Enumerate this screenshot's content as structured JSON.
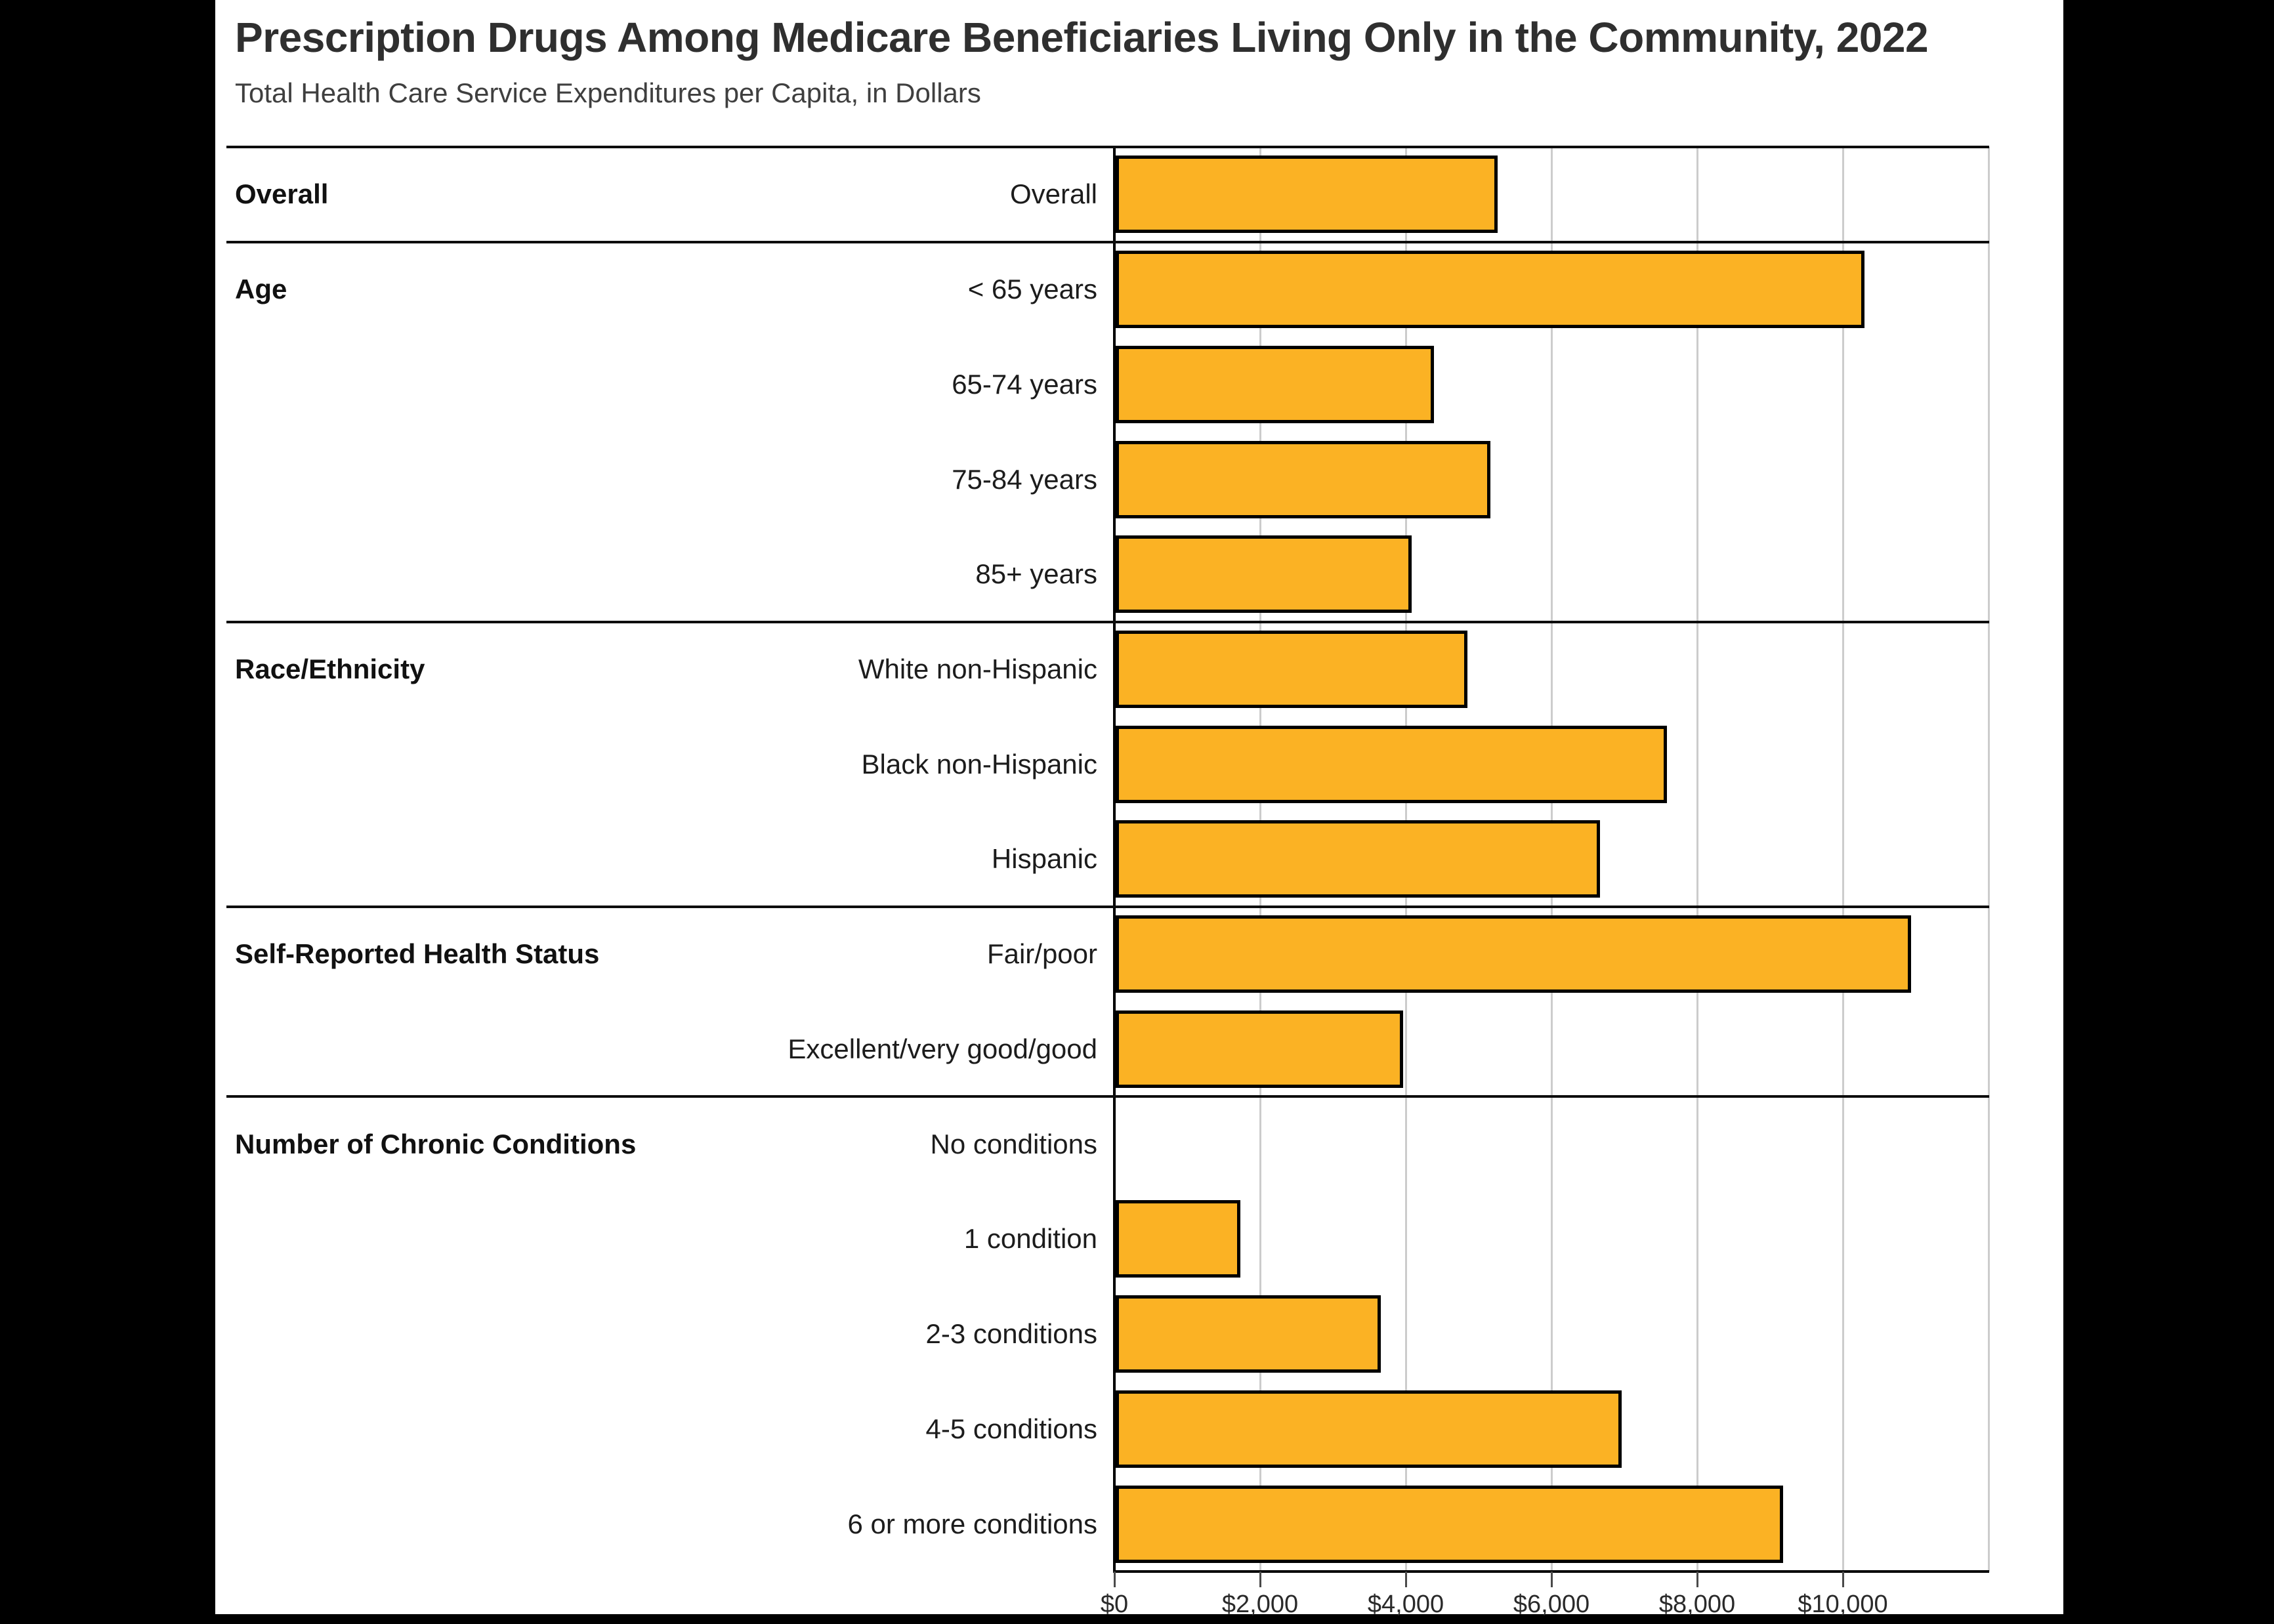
{
  "title": "Prescription Drugs Among Medicare Beneficiaries Living Only in the Community, 2022",
  "subtitle": "Total Health Care Service Expenditures per Capita, in Dollars",
  "x_axis": {
    "tick_labels": [
      "$0",
      "$2,000",
      "$4,000",
      "$6,000",
      "$8,000",
      "$10,000"
    ],
    "tick_values": [
      0,
      2000,
      4000,
      6000,
      8000,
      10000
    ],
    "gridline_values": [
      2000,
      4000,
      6000,
      8000,
      10000,
      12000
    ],
    "max": 12000
  },
  "chart_data": {
    "type": "bar",
    "orientation": "horizontal",
    "title": "Prescription Drugs Among Medicare Beneficiaries Living Only in the Community, 2022",
    "subtitle": "Total Health Care Service Expenditures per Capita, in Dollars",
    "xlabel": "Total Health Care Service Expenditures per Capita, in Dollars",
    "ylabel": "",
    "xlim": [
      0,
      12000
    ],
    "grid": true,
    "legend": false,
    "bar_color": "#fbb224",
    "bar_border_color": "#000000",
    "categories": [
      "Overall",
      "< 65 years",
      "65-74 years",
      "75-84 years",
      "85+ years",
      "White non-Hispanic",
      "Black non-Hispanic",
      "Hispanic",
      "Fair/poor",
      "Excellent/very good/good",
      "No conditions",
      "1 condition",
      "2-3 conditions",
      "4-5 conditions",
      "6 or more conditions"
    ],
    "values": [
      5240,
      10280,
      4370,
      5140,
      4060,
      4830,
      7570,
      6650,
      10920,
      3950,
      0,
      1710,
      3640,
      6950,
      9160
    ],
    "sections": [
      {
        "label": "Overall",
        "rows": [
          {
            "label": "Overall",
            "value": 5240
          }
        ]
      },
      {
        "label": "Age",
        "rows": [
          {
            "label": "< 65 years",
            "value": 10280
          },
          {
            "label": "65-74 years",
            "value": 4370
          },
          {
            "label": "75-84 years",
            "value": 5140
          },
          {
            "label": "85+ years",
            "value": 4060
          }
        ]
      },
      {
        "label": "Race/Ethnicity",
        "rows": [
          {
            "label": "White non-Hispanic",
            "value": 4830
          },
          {
            "label": "Black non-Hispanic",
            "value": 7570
          },
          {
            "label": "Hispanic",
            "value": 6650
          }
        ]
      },
      {
        "label": "Self-Reported Health Status",
        "rows": [
          {
            "label": "Fair/poor",
            "value": 10920
          },
          {
            "label": "Excellent/very good/good",
            "value": 3950
          }
        ]
      },
      {
        "label": "Number of Chronic Conditions",
        "rows": [
          {
            "label": "No conditions",
            "value": 0
          },
          {
            "label": "1 condition",
            "value": 1710
          },
          {
            "label": "2-3 conditions",
            "value": 3640
          },
          {
            "label": "4-5 conditions",
            "value": 6950
          },
          {
            "label": "6 or more conditions",
            "value": 9160
          }
        ]
      }
    ]
  }
}
